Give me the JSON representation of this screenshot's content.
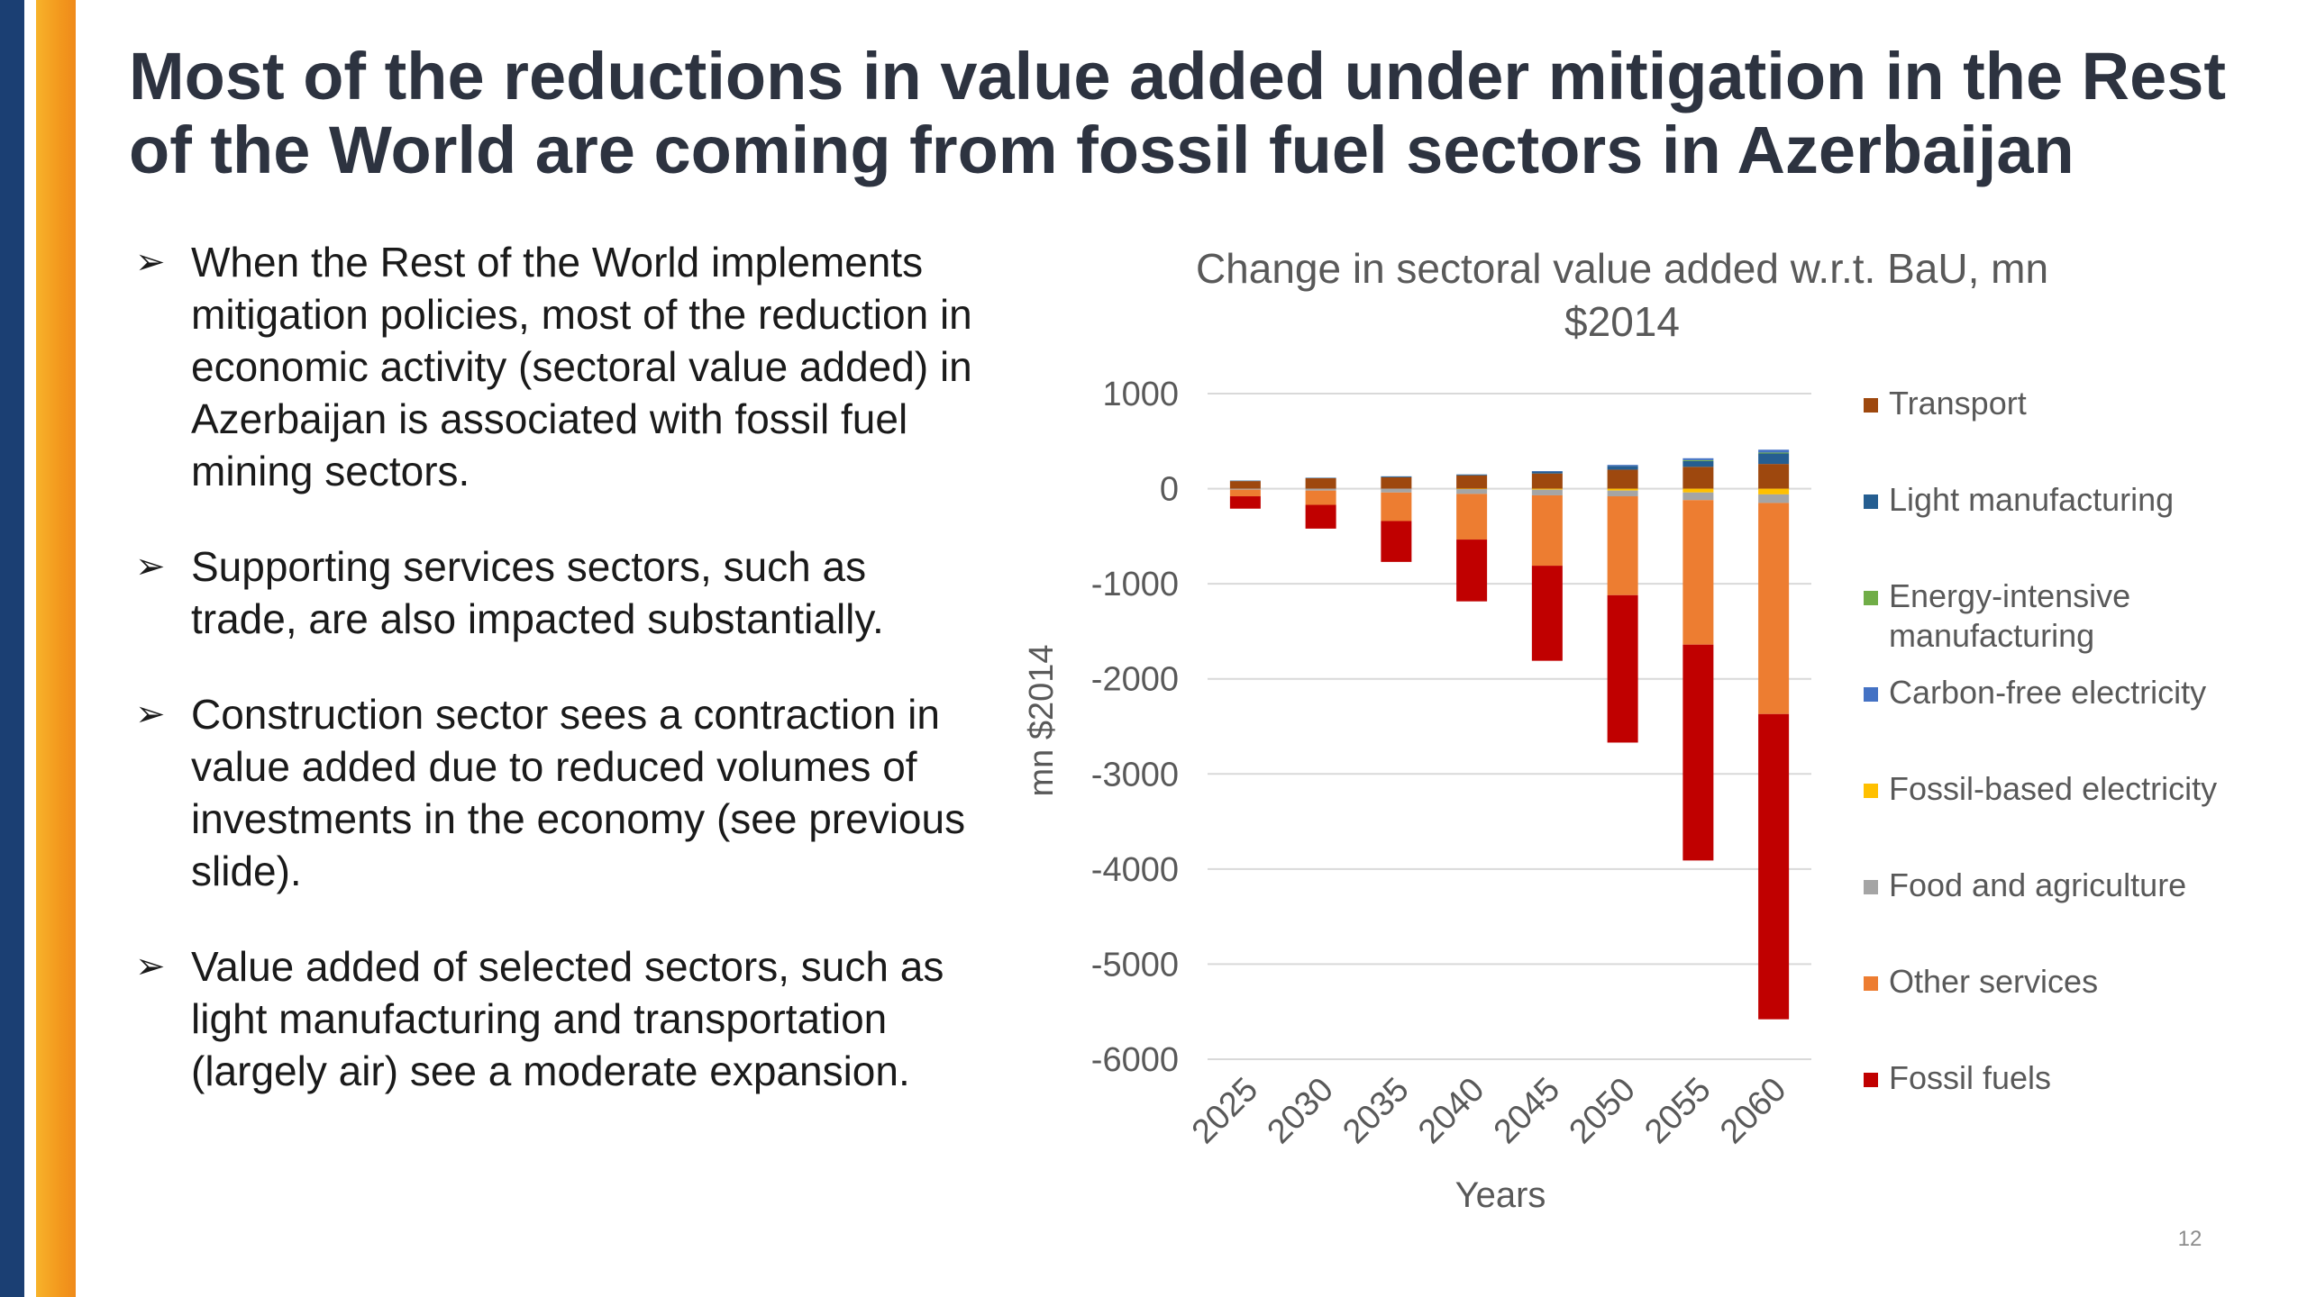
{
  "slide": {
    "title": "Most of the reductions in value added under mitigation in the Rest of the World are coming from fossil fuel sectors in Azerbaijan",
    "bullet_marker": "➢",
    "bullets": [
      "When the Rest of the World implements mitigation policies, most of the reduction in economic activity (sectoral value added) in Azerbaijan is associated with fossil fuel mining sectors.",
      "Supporting services sectors, such as trade, are also impacted substantially.",
      "Construction sector sees a contraction in value added due to reduced volumes of investments in the economy (see previous slide).",
      "Value added of selected sectors, such as light manufacturing and transportation (largely air) see a moderate expansion."
    ],
    "page_number": "12",
    "colors": {
      "left_stripe_blue": "#1b3f73",
      "left_stripe_orange": "#f4a21f",
      "title": "#2d3340"
    }
  },
  "chart_data": {
    "type": "bar",
    "stacked": true,
    "title": "Change in sectoral value added w.r.t. BaU, mn $2014",
    "xlabel": "Years",
    "ylabel": "mn $2014",
    "ylim": [
      -6000,
      1000
    ],
    "yticks": [
      1000,
      0,
      -1000,
      -2000,
      -3000,
      -4000,
      -5000,
      -6000
    ],
    "grid": true,
    "legend_position": "right",
    "categories": [
      "2025",
      "2030",
      "2035",
      "2040",
      "2045",
      "2050",
      "2055",
      "2060"
    ],
    "series": [
      {
        "name": "Transport",
        "color": "#9e480e",
        "values": [
          80,
          110,
          120,
          140,
          160,
          200,
          230,
          260
        ]
      },
      {
        "name": "Light manufacturing",
        "color": "#255e91",
        "values": [
          5,
          5,
          10,
          10,
          20,
          40,
          60,
          110
        ]
      },
      {
        "name": "Energy-intensive manufacturing",
        "color": "#70ad47",
        "values": [
          0,
          0,
          0,
          0,
          0,
          0,
          10,
          10
        ]
      },
      {
        "name": "Carbon-free electricity",
        "color": "#4472c4",
        "values": [
          0,
          0,
          0,
          0,
          5,
          10,
          20,
          30
        ]
      },
      {
        "name": "Fossil-based electricity",
        "color": "#ffc000",
        "values": [
          0,
          0,
          0,
          -5,
          -10,
          -20,
          -40,
          -60
        ]
      },
      {
        "name": "Food and agriculture",
        "color": "#a5a5a5",
        "values": [
          -10,
          -20,
          -40,
          -50,
          -60,
          -60,
          -80,
          -90
        ]
      },
      {
        "name": "Other services",
        "color": "#ed7d31",
        "values": [
          -70,
          -150,
          -300,
          -480,
          -740,
          -1040,
          -1520,
          -2220
        ]
      },
      {
        "name": "Fossil fuels",
        "color": "#c00000",
        "values": [
          -130,
          -250,
          -430,
          -650,
          -1000,
          -1550,
          -2270,
          -3210
        ]
      }
    ]
  }
}
